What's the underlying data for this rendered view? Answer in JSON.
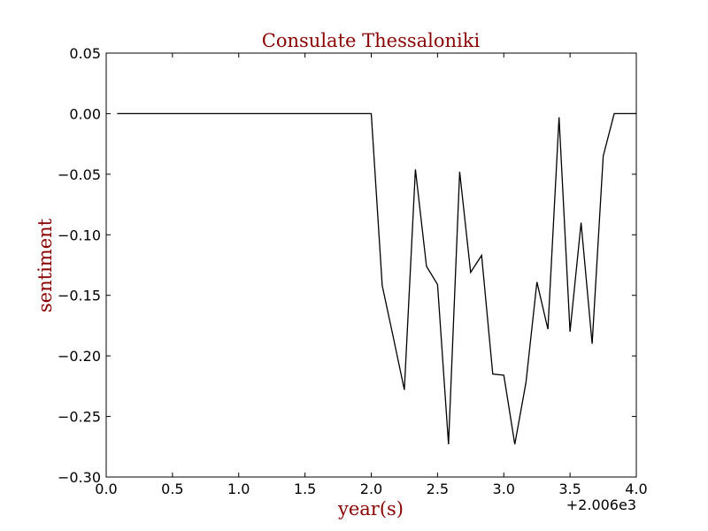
{
  "chart_data": {
    "type": "line",
    "title": "Consulate Thessaloniki",
    "xlabel": "year(s)",
    "ylabel": "sentiment",
    "x_offset_label": "+2.006e3",
    "xlim": [
      0.0,
      4.0
    ],
    "ylim": [
      -0.3,
      0.05
    ],
    "x_ticks": [
      "0.0",
      "0.5",
      "1.0",
      "1.5",
      "2.0",
      "2.5",
      "3.0",
      "3.5",
      "4.0"
    ],
    "y_ticks": [
      "0.05",
      "0.00",
      "−0.05",
      "−0.10",
      "−0.15",
      "−0.20",
      "−0.25",
      "−0.30"
    ],
    "grid": false,
    "line_color": "#000000",
    "series": [
      {
        "x": [
          0.083,
          0.167,
          0.25,
          0.333,
          0.417,
          0.5,
          0.583,
          0.667,
          0.75,
          0.833,
          0.917,
          1.0,
          1.083,
          1.167,
          1.25,
          1.333,
          1.417,
          1.5,
          1.583,
          1.667,
          1.75,
          1.833,
          1.917,
          2.0,
          2.083,
          2.167,
          2.25,
          2.333,
          2.417,
          2.5,
          2.583,
          2.667,
          2.75,
          2.833,
          2.917,
          3.0,
          3.083,
          3.167,
          3.25,
          3.333,
          3.417,
          3.5,
          3.583,
          3.667,
          3.75,
          3.833,
          3.917,
          4.0
        ],
        "y": [
          0.0,
          0.0,
          0.0,
          0.0,
          0.0,
          0.0,
          0.0,
          0.0,
          0.0,
          0.0,
          0.0,
          0.0,
          0.0,
          0.0,
          0.0,
          0.0,
          0.0,
          0.0,
          0.0,
          0.0,
          0.0,
          0.0,
          0.0,
          0.0,
          -0.142,
          -0.185,
          -0.228,
          -0.046,
          -0.126,
          -0.141,
          -0.273,
          -0.048,
          -0.131,
          -0.117,
          -0.215,
          -0.216,
          -0.273,
          -0.222,
          -0.139,
          -0.178,
          -0.003,
          -0.18,
          -0.09,
          -0.19,
          -0.035,
          0.0,
          0.0,
          0.0
        ]
      }
    ]
  }
}
